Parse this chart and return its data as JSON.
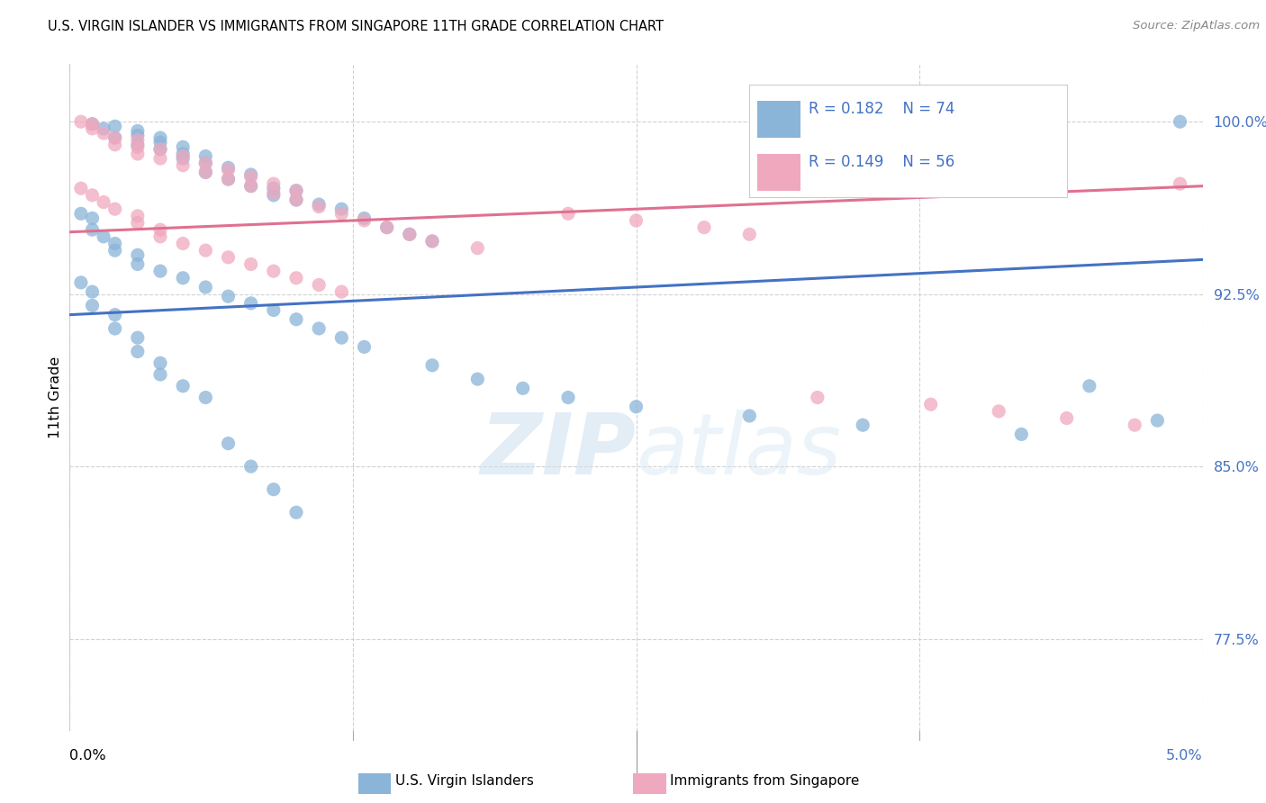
{
  "title": "U.S. VIRGIN ISLANDER VS IMMIGRANTS FROM SINGAPORE 11TH GRADE CORRELATION CHART",
  "source": "Source: ZipAtlas.com",
  "ylabel": "11th Grade",
  "xmin": 0.0,
  "xmax": 0.05,
  "ymin": 0.735,
  "ymax": 1.025,
  "yticks": [
    0.775,
    0.85,
    0.925,
    1.0
  ],
  "ytick_labels": [
    "77.5%",
    "85.0%",
    "92.5%",
    "100.0%"
  ],
  "legend_r_blue": "R = 0.182",
  "legend_n_blue": "N = 74",
  "legend_r_pink": "R = 0.149",
  "legend_n_pink": "N = 56",
  "legend_label_blue": "U.S. Virgin Islanders",
  "legend_label_pink": "Immigrants from Singapore",
  "blue_color": "#8ab4d8",
  "pink_color": "#f0a8be",
  "blue_line_color": "#4472c4",
  "pink_line_color": "#e07090",
  "watermark_color": "#d8e8f5",
  "blue_trendline_x": [
    0.0,
    0.05
  ],
  "blue_trendline_y": [
    0.916,
    0.94
  ],
  "pink_trendline_x": [
    0.0,
    0.05
  ],
  "pink_trendline_y": [
    0.952,
    0.972
  ],
  "blue_scatter_x": [
    0.001,
    0.0015,
    0.002,
    0.002,
    0.003,
    0.003,
    0.003,
    0.004,
    0.004,
    0.004,
    0.005,
    0.005,
    0.005,
    0.006,
    0.006,
    0.006,
    0.007,
    0.007,
    0.008,
    0.008,
    0.009,
    0.009,
    0.01,
    0.01,
    0.011,
    0.012,
    0.013,
    0.014,
    0.015,
    0.016,
    0.0005,
    0.001,
    0.001,
    0.0015,
    0.002,
    0.002,
    0.003,
    0.003,
    0.004,
    0.005,
    0.006,
    0.007,
    0.008,
    0.009,
    0.01,
    0.011,
    0.012,
    0.013,
    0.016,
    0.018,
    0.02,
    0.022,
    0.025,
    0.03,
    0.035,
    0.042,
    0.045,
    0.048,
    0.049,
    0.0005,
    0.001,
    0.001,
    0.002,
    0.002,
    0.003,
    0.003,
    0.004,
    0.004,
    0.005,
    0.006,
    0.007,
    0.008,
    0.009,
    0.01
  ],
  "blue_scatter_y": [
    0.999,
    0.997,
    0.998,
    0.993,
    0.996,
    0.994,
    0.99,
    0.993,
    0.991,
    0.988,
    0.989,
    0.986,
    0.984,
    0.985,
    0.982,
    0.978,
    0.98,
    0.975,
    0.977,
    0.972,
    0.971,
    0.968,
    0.97,
    0.966,
    0.964,
    0.962,
    0.958,
    0.954,
    0.951,
    0.948,
    0.96,
    0.958,
    0.953,
    0.95,
    0.947,
    0.944,
    0.942,
    0.938,
    0.935,
    0.932,
    0.928,
    0.924,
    0.921,
    0.918,
    0.914,
    0.91,
    0.906,
    0.902,
    0.894,
    0.888,
    0.884,
    0.88,
    0.876,
    0.872,
    0.868,
    0.864,
    0.885,
    0.87,
    1.0,
    0.93,
    0.926,
    0.92,
    0.916,
    0.91,
    0.906,
    0.9,
    0.895,
    0.89,
    0.885,
    0.88,
    0.86,
    0.85,
    0.84,
    0.83
  ],
  "pink_scatter_x": [
    0.0005,
    0.001,
    0.001,
    0.0015,
    0.002,
    0.002,
    0.003,
    0.003,
    0.003,
    0.004,
    0.004,
    0.005,
    0.005,
    0.006,
    0.006,
    0.007,
    0.007,
    0.008,
    0.008,
    0.009,
    0.009,
    0.01,
    0.01,
    0.011,
    0.012,
    0.013,
    0.014,
    0.015,
    0.016,
    0.018,
    0.0005,
    0.001,
    0.0015,
    0.002,
    0.003,
    0.003,
    0.004,
    0.004,
    0.005,
    0.006,
    0.007,
    0.008,
    0.009,
    0.01,
    0.011,
    0.012,
    0.022,
    0.025,
    0.028,
    0.03,
    0.033,
    0.038,
    0.041,
    0.044,
    0.047,
    0.049
  ],
  "pink_scatter_y": [
    1.0,
    0.999,
    0.997,
    0.995,
    0.993,
    0.99,
    0.992,
    0.989,
    0.986,
    0.988,
    0.984,
    0.985,
    0.981,
    0.982,
    0.978,
    0.979,
    0.975,
    0.976,
    0.972,
    0.973,
    0.969,
    0.97,
    0.966,
    0.963,
    0.96,
    0.957,
    0.954,
    0.951,
    0.948,
    0.945,
    0.971,
    0.968,
    0.965,
    0.962,
    0.959,
    0.956,
    0.953,
    0.95,
    0.947,
    0.944,
    0.941,
    0.938,
    0.935,
    0.932,
    0.929,
    0.926,
    0.96,
    0.957,
    0.954,
    0.951,
    0.88,
    0.877,
    0.874,
    0.871,
    0.868,
    0.973
  ]
}
